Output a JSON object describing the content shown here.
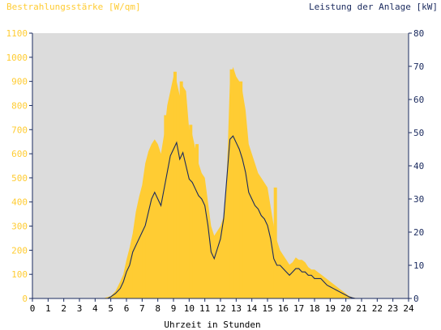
{
  "colors": {
    "background": "#ffffff",
    "plot_background": "#dcdcdc",
    "irradiance": "#ffcc33",
    "power": "#1a2a5e",
    "left_axis_text": "#ffcc33",
    "right_axis_text": "#1a2a5e",
    "x_axis_text": "#000000",
    "axis_line": "#1a2a5e"
  },
  "chart_data": {
    "type": "area",
    "left_axis_title": "Bestrahlungsstärke [W/qm]",
    "right_axis_title": "Leistung der Anlage [kW]",
    "xlabel": "Uhrzeit in Stunden",
    "xlim": [
      0,
      24
    ],
    "ylim_left": [
      0,
      1100
    ],
    "ylim_right": [
      0,
      80
    ],
    "x_ticks": [
      "0",
      "1",
      "2",
      "3",
      "4",
      "5",
      "6",
      "7",
      "8",
      "9",
      "10",
      "11",
      "12",
      "13",
      "14",
      "15",
      "16",
      "17",
      "18",
      "19",
      "20",
      "21",
      "22",
      "23",
      "24"
    ],
    "y_left_ticks": [
      "0",
      "100",
      "200",
      "300",
      "400",
      "500",
      "600",
      "700",
      "800",
      "900",
      "1000",
      "1100"
    ],
    "y_right_ticks": [
      "0",
      "10",
      "20",
      "30",
      "40",
      "50",
      "60",
      "70",
      "80"
    ],
    "grid": false,
    "series": [
      {
        "name": "Bestrahlungsstärke [W/qm]",
        "axis": "left",
        "style": "filled-area",
        "x": [
          0,
          4.5,
          5,
          5.3,
          5.6,
          5.8,
          6,
          6.2,
          6.4,
          6.6,
          6.8,
          7,
          7.2,
          7.4,
          7.6,
          7.8,
          8,
          8.2,
          8.4,
          8.6,
          8.8,
          9,
          9.2,
          9.4,
          9.6,
          9.8,
          10,
          10.2,
          10.4,
          10.6,
          10.8,
          11,
          11.2,
          11.4,
          11.6,
          11.8,
          12,
          12.2,
          12.4,
          12.6,
          12.8,
          13,
          13.2,
          13.4,
          13.6,
          13.8,
          14,
          14.2,
          14.4,
          14.6,
          14.8,
          15,
          15.2,
          15.4,
          15.6,
          15.8,
          16,
          16.2,
          16.4,
          16.6,
          16.8,
          17,
          17.2,
          17.4,
          17.6,
          17.8,
          18,
          18.2,
          18.4,
          18.6,
          18.8,
          19,
          19.2,
          19.4,
          19.6,
          19.8,
          20,
          20.2,
          20.4,
          20.6,
          20.8,
          21,
          24
        ],
        "y": [
          0,
          0,
          10,
          30,
          70,
          100,
          160,
          210,
          270,
          360,
          420,
          470,
          560,
          610,
          640,
          660,
          640,
          600,
          680,
          800,
          860,
          920,
          900,
          840,
          880,
          860,
          700,
          680,
          620,
          560,
          520,
          500,
          400,
          300,
          260,
          280,
          300,
          340,
          500,
          900,
          960,
          920,
          900,
          860,
          780,
          640,
          600,
          560,
          520,
          500,
          480,
          460,
          380,
          300,
          240,
          200,
          180,
          160,
          140,
          150,
          170,
          160,
          160,
          150,
          130,
          120,
          120,
          110,
          100,
          90,
          80,
          70,
          60,
          50,
          40,
          30,
          20,
          10,
          5,
          2,
          0,
          0,
          0
        ],
        "fill_bars": [
          {
            "x": 6.5,
            "value": 200
          },
          {
            "x": 7.1,
            "value": 300
          },
          {
            "x": 7.5,
            "value": 600
          },
          {
            "x": 8.5,
            "value": 760
          },
          {
            "x": 9.1,
            "value": 940
          },
          {
            "x": 9.5,
            "value": 900
          },
          {
            "x": 10.1,
            "value": 720
          },
          {
            "x": 10.5,
            "value": 640
          },
          {
            "x": 12.7,
            "value": 950
          },
          {
            "x": 13.3,
            "value": 900
          },
          {
            "x": 15.5,
            "value": 460
          }
        ]
      },
      {
        "name": "Leistung der Anlage [kW]",
        "axis": "right",
        "style": "line",
        "x": [
          0,
          4.8,
          5,
          5.3,
          5.6,
          5.8,
          6,
          6.2,
          6.4,
          6.6,
          6.8,
          7,
          7.2,
          7.4,
          7.6,
          7.8,
          8,
          8.2,
          8.4,
          8.6,
          8.8,
          9,
          9.2,
          9.4,
          9.6,
          9.8,
          10,
          10.2,
          10.4,
          10.6,
          10.8,
          11,
          11.2,
          11.4,
          11.6,
          11.8,
          12,
          12.2,
          12.4,
          12.6,
          12.8,
          13,
          13.2,
          13.4,
          13.6,
          13.8,
          14,
          14.2,
          14.4,
          14.6,
          14.8,
          15,
          15.2,
          15.4,
          15.6,
          15.8,
          16,
          16.2,
          16.4,
          16.6,
          16.8,
          17,
          17.2,
          17.4,
          17.6,
          17.8,
          18,
          18.2,
          18.4,
          18.6,
          18.8,
          19,
          19.2,
          19.4,
          19.6,
          19.8,
          20,
          20.2,
          20.4,
          20.6,
          20.8,
          21,
          24
        ],
        "y": [
          0,
          0,
          0.5,
          1.5,
          3,
          5,
          8,
          10,
          14,
          16,
          18,
          20,
          22,
          26,
          30,
          32,
          30,
          28,
          33,
          38,
          43,
          45,
          47,
          42,
          44,
          40,
          36,
          35,
          33,
          31,
          30,
          28,
          22,
          14,
          12,
          15,
          18,
          24,
          36,
          48,
          49,
          47,
          45,
          42,
          38,
          32,
          30,
          28,
          27,
          25,
          24,
          22,
          18,
          12,
          10,
          10,
          9,
          8,
          7,
          8,
          9,
          9,
          8,
          8,
          7,
          7,
          6,
          6,
          6,
          5,
          4,
          3.5,
          3,
          2.5,
          2,
          1.5,
          1,
          0.5,
          0.2,
          0,
          0,
          0,
          0
        ]
      }
    ]
  }
}
